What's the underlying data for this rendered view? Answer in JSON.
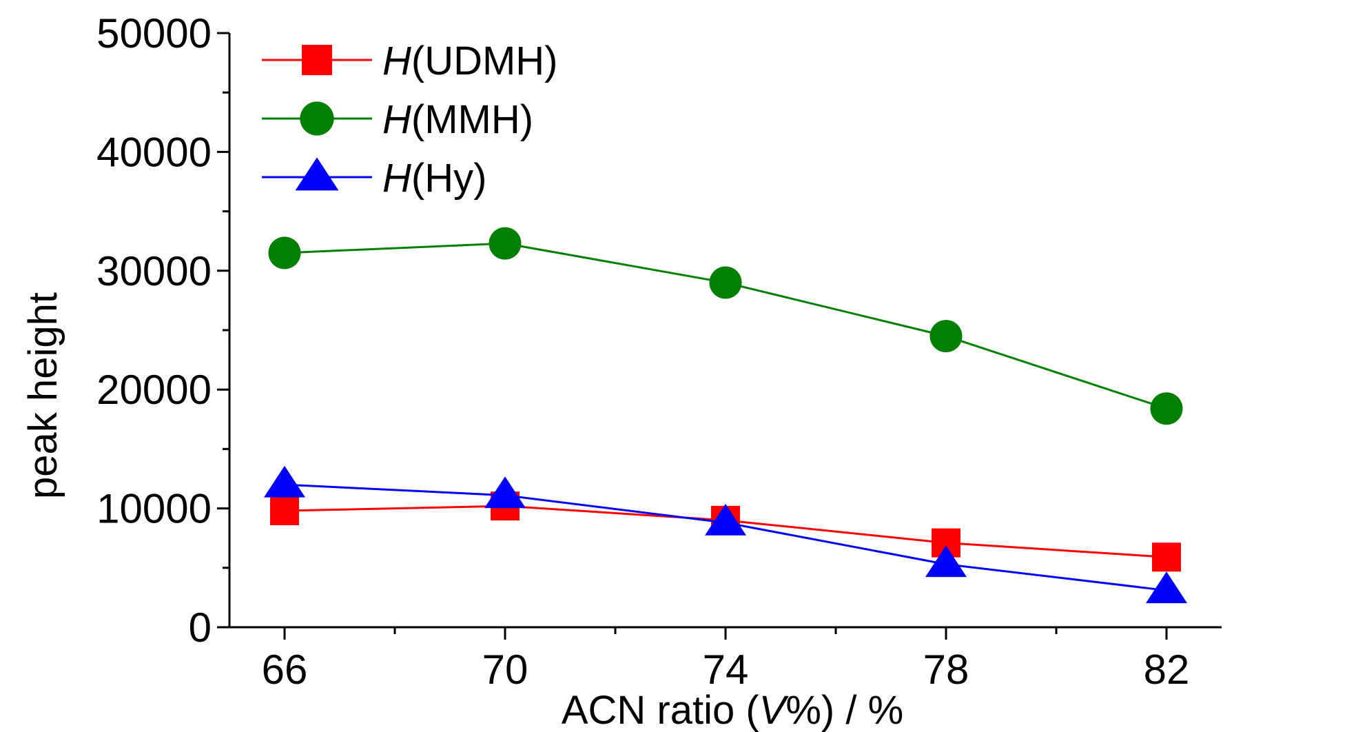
{
  "chart_data": {
    "type": "line",
    "title": "",
    "xlabel_parts": {
      "prefix": "ACN ratio (",
      "italic": "V",
      "suffix": "%) / %"
    },
    "ylabel": "peak height",
    "x": [
      66,
      70,
      74,
      78,
      82
    ],
    "x_tick_labels": [
      "66",
      "70",
      "74",
      "78",
      "82"
    ],
    "xlim": [
      65,
      83
    ],
    "ylim": [
      0,
      50000
    ],
    "y_ticks": [
      0,
      10000,
      20000,
      30000,
      40000,
      50000
    ],
    "y_tick_labels": [
      "0",
      "10000",
      "20000",
      "30000",
      "40000",
      "50000"
    ],
    "grid": false,
    "legend_position": "top-left",
    "series": [
      {
        "name_italic": "H",
        "name_rest": "(UDMH)",
        "color": "#ff0000",
        "marker": "square",
        "values": [
          9800,
          10200,
          9000,
          7100,
          5900
        ]
      },
      {
        "name_italic": "H",
        "name_rest": "(MMH)",
        "color": "#008000",
        "marker": "circle",
        "values": [
          31500,
          32300,
          29000,
          24500,
          18400
        ]
      },
      {
        "name_italic": "H",
        "name_rest": "(Hy)",
        "color": "#0000ff",
        "marker": "triangle",
        "values": [
          12000,
          11100,
          8800,
          5300,
          3100
        ]
      }
    ]
  }
}
